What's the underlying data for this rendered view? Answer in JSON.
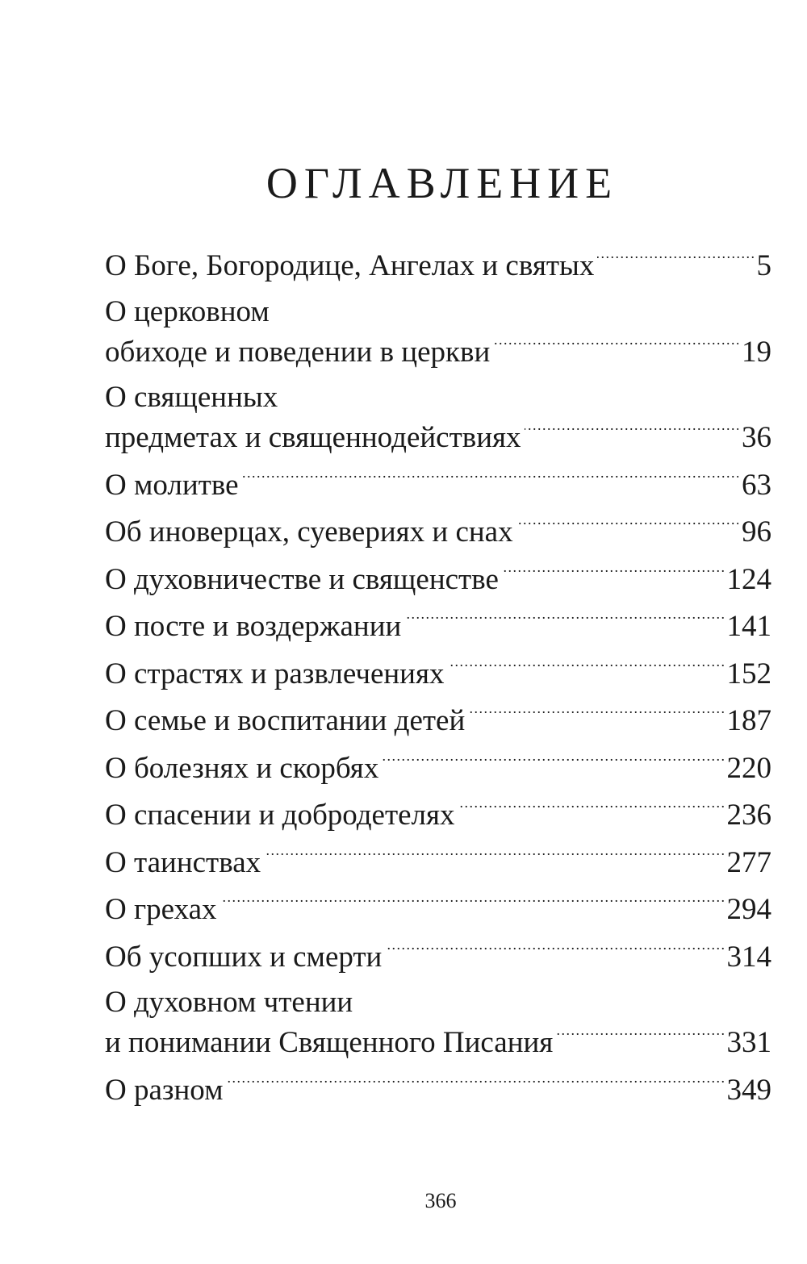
{
  "title": "ОГЛАВЛЕНИЕ",
  "entries": [
    {
      "lines": [
        "О Боге, Богородице, Ангелах и святых"
      ],
      "page": "5"
    },
    {
      "lines": [
        "О церковном",
        "обиходе и поведении в церкви"
      ],
      "page": "19"
    },
    {
      "lines": [
        "О священных",
        "предметах и священнодействиях"
      ],
      "page": "36"
    },
    {
      "lines": [
        "О молитве"
      ],
      "page": "63"
    },
    {
      "lines": [
        "Об иноверцах, суевериях и снах"
      ],
      "page": "96"
    },
    {
      "lines": [
        "О духовничестве и священстве"
      ],
      "page": "124"
    },
    {
      "lines": [
        "О посте и воздержании"
      ],
      "page": "141"
    },
    {
      "lines": [
        "О страстях и развлечениях"
      ],
      "page": "152"
    },
    {
      "lines": [
        "О семье и воспитании детей"
      ],
      "page": "187"
    },
    {
      "lines": [
        "О болезнях и скорбях"
      ],
      "page": "220"
    },
    {
      "lines": [
        "О спасении и добродетелях"
      ],
      "page": "236"
    },
    {
      "lines": [
        "О таинствах"
      ],
      "page": "277"
    },
    {
      "lines": [
        "О грехах"
      ],
      "page": "294"
    },
    {
      "lines": [
        "Об усопших и смерти"
      ],
      "page": "314"
    },
    {
      "lines": [
        "О духовном чтении",
        "и понимании Священного Писания"
      ],
      "page": "331"
    },
    {
      "lines": [
        "О разном"
      ],
      "page": "349"
    }
  ],
  "page_number": "366"
}
